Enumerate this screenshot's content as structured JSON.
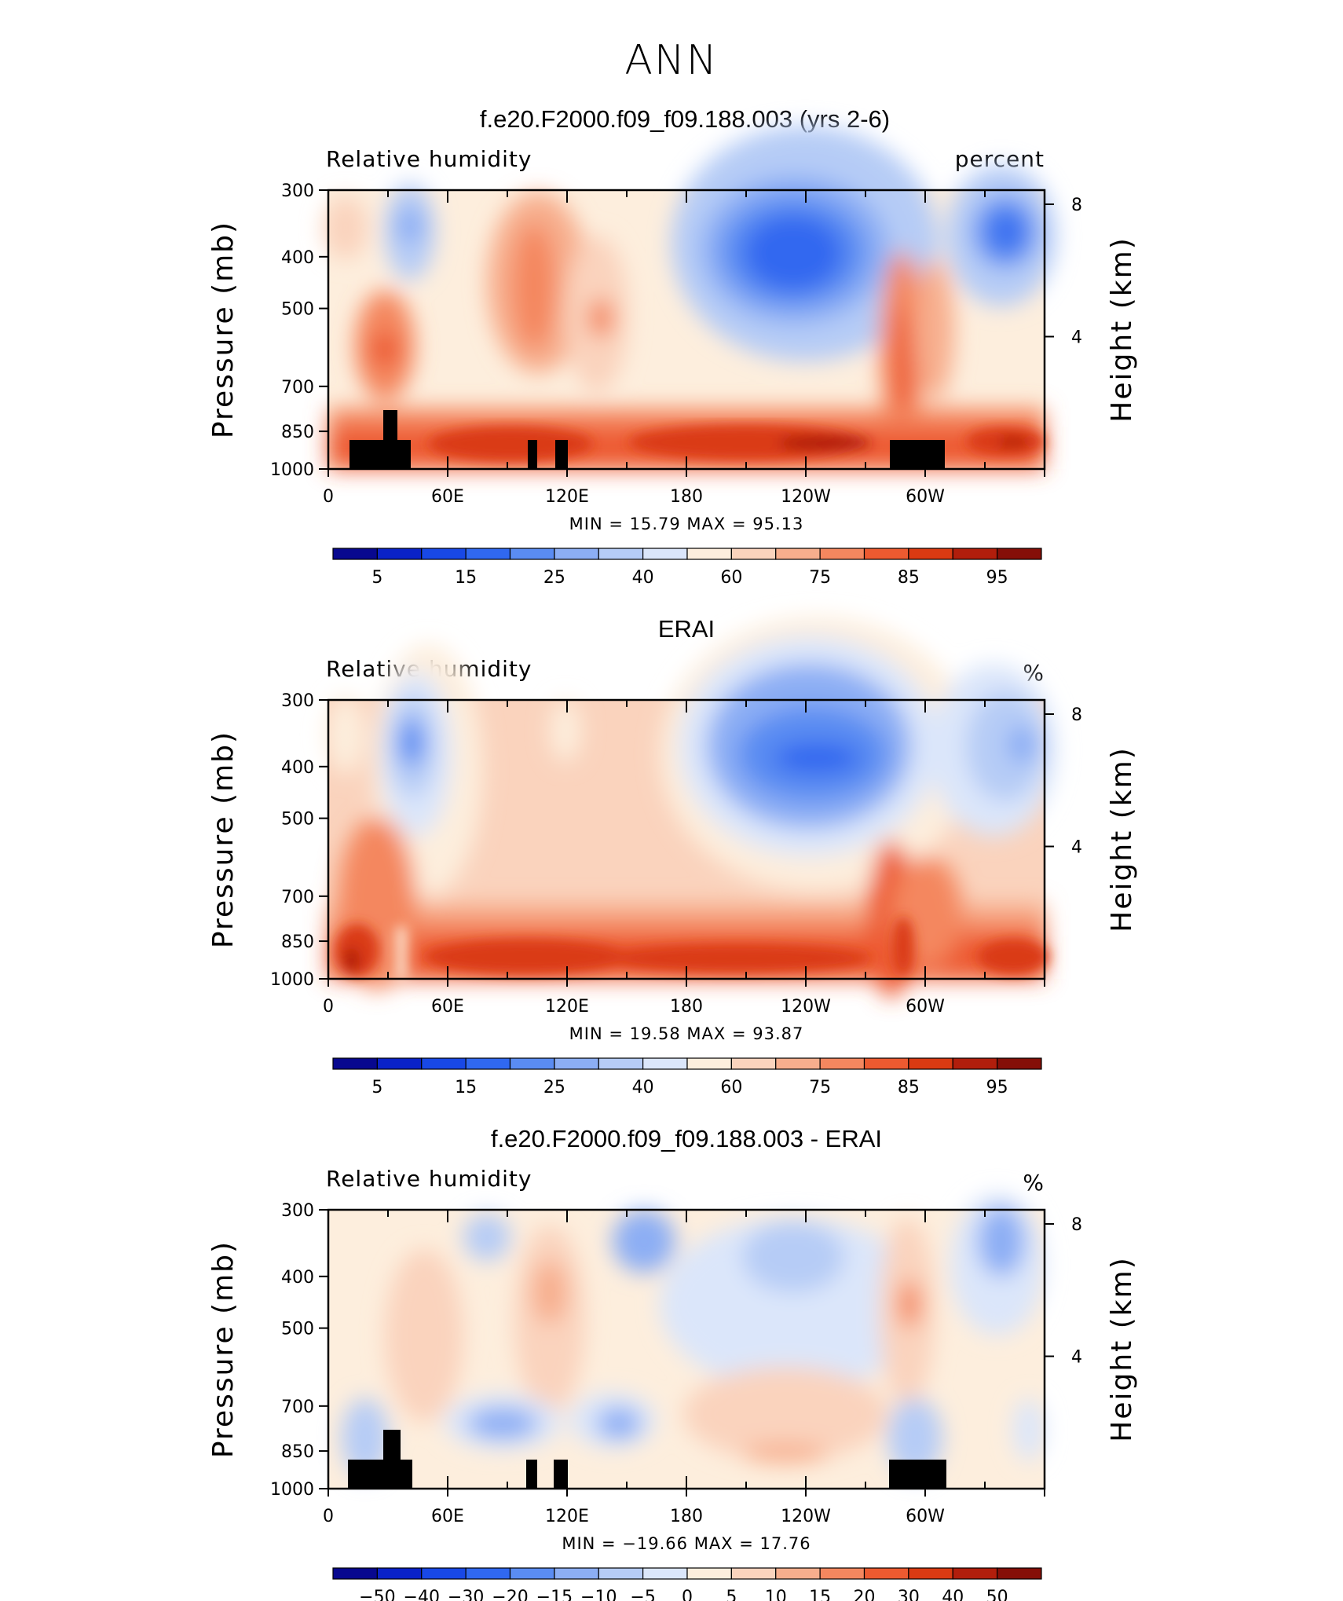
{
  "figure_title": "ANN",
  "colors": {
    "abs_levels": [
      "#08088f",
      "#0a22c8",
      "#1848e6",
      "#3068f0",
      "#5a8cf2",
      "#8caef4",
      "#b6ccf6",
      "#dbe6fa",
      "#fdeedd",
      "#fad3bd",
      "#f7ae8d",
      "#f4875f",
      "#ed5a30",
      "#da3a12",
      "#b11e0c",
      "#850f08"
    ],
    "diff_levels": [
      "#08088f",
      "#0a22c8",
      "#1848e6",
      "#3068f0",
      "#5a8cf2",
      "#8caef4",
      "#b6ccf6",
      "#dbe6fa",
      "#fdeedd",
      "#fad3bd",
      "#f7ae8d",
      "#f4875f",
      "#ed5a30",
      "#da3a12",
      "#b11e0c",
      "#850f08"
    ],
    "topography": "#000000"
  },
  "chart_data": [
    {
      "type": "heatmap",
      "title": "f.e20.F2000.f09_f09.188.003 (yrs 2-6)",
      "left_label": "Relative  humidity",
      "right_label": "percent",
      "ylabel": "Pressure  (mb)",
      "ylabel_right": "Height  (km)",
      "x_ticks": [
        "0",
        "60E",
        "120E",
        "180",
        "120W",
        "60W"
      ],
      "x_range": [
        0,
        360
      ],
      "y_ticks": [
        "300",
        "400",
        "500",
        "700",
        "850",
        "1000"
      ],
      "y_range": [
        300,
        1000
      ],
      "y_right_ticks": [
        "8",
        "4"
      ],
      "stats_text": "MIN =   15.79   MAX =   95.13",
      "min": 15.79,
      "max": 95.13,
      "colorbar_labels": [
        "5",
        "15",
        "25",
        "40",
        "60",
        "75",
        "85",
        "95"
      ],
      "colorbar_levels": [
        5,
        10,
        15,
        20,
        25,
        30,
        40,
        50,
        60,
        70,
        75,
        80,
        85,
        90,
        95
      ],
      "mask_topography": true
    },
    {
      "type": "heatmap",
      "title": "ERAI",
      "left_label": "Relative  humidity",
      "right_label": "%",
      "ylabel": "Pressure  (mb)",
      "ylabel_right": "Height  (km)",
      "x_ticks": [
        "0",
        "60E",
        "120E",
        "180",
        "120W",
        "60W"
      ],
      "x_range": [
        0,
        360
      ],
      "y_ticks": [
        "300",
        "400",
        "500",
        "700",
        "850",
        "1000"
      ],
      "y_range": [
        300,
        1000
      ],
      "y_right_ticks": [
        "8",
        "4"
      ],
      "stats_text": "MIN =   19.58   MAX =   93.87",
      "min": 19.58,
      "max": 93.87,
      "colorbar_labels": [
        "5",
        "15",
        "25",
        "40",
        "60",
        "75",
        "85",
        "95"
      ],
      "colorbar_levels": [
        5,
        10,
        15,
        20,
        25,
        30,
        40,
        50,
        60,
        70,
        75,
        80,
        85,
        90,
        95
      ],
      "mask_topography": false
    },
    {
      "type": "heatmap",
      "title": "f.e20.F2000.f09_f09.188.003 - ERAI",
      "left_label": "Relative  humidity",
      "right_label": "%",
      "ylabel": "Pressure  (mb)",
      "ylabel_right": "Height  (km)",
      "x_ticks": [
        "0",
        "60E",
        "120E",
        "180",
        "120W",
        "60W"
      ],
      "x_range": [
        0,
        360
      ],
      "y_ticks": [
        "300",
        "400",
        "500",
        "700",
        "850",
        "1000"
      ],
      "y_range": [
        300,
        1000
      ],
      "y_right_ticks": [
        "8",
        "4"
      ],
      "stats_text": "MIN =  −19.66   MAX =   17.76",
      "min": -19.66,
      "max": 17.76,
      "colorbar_labels": [
        "−50",
        "−40",
        "−30",
        "−20",
        "−15",
        "−10",
        "−5",
        "0",
        "5",
        "10",
        "15",
        "20",
        "30",
        "40",
        "50"
      ],
      "colorbar_levels": [
        -50,
        -40,
        -30,
        -20,
        -15,
        -10,
        -5,
        0,
        5,
        10,
        15,
        20,
        30,
        40,
        50
      ],
      "mask_topography": true
    }
  ]
}
